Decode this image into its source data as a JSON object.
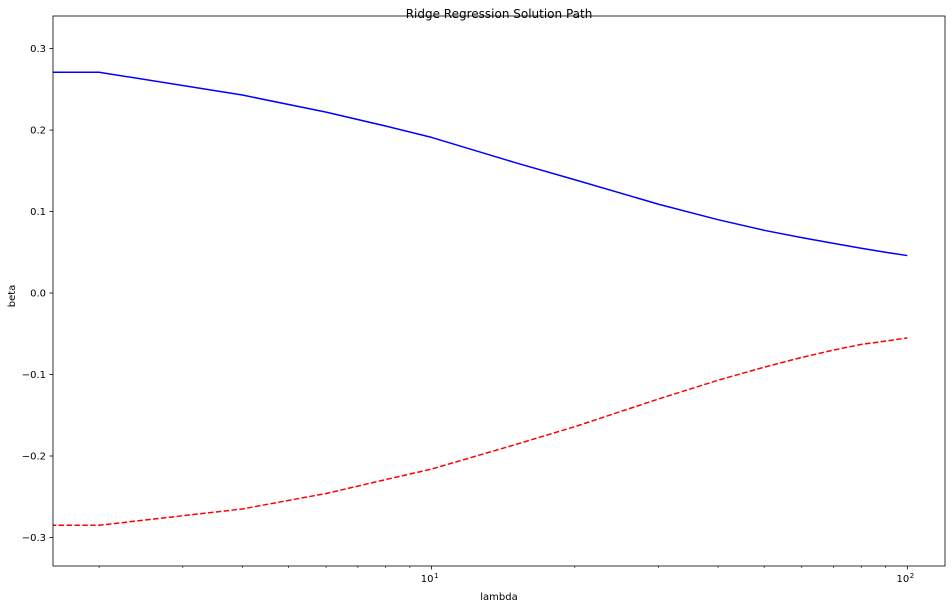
{
  "chart_data": {
    "type": "line",
    "title": "Ridge Regression Solution Path",
    "xlabel": "lambda",
    "ylabel": "beta",
    "xscale": "log",
    "xlim": [
      1.6,
      120
    ],
    "ylim": [
      -0.335,
      0.34
    ],
    "grid": false,
    "x_major_ticks": [
      {
        "value": 10,
        "base": "10",
        "exp": "1"
      },
      {
        "value": 100,
        "base": "10",
        "exp": "2"
      }
    ],
    "x_minor_ticks": [
      2,
      3,
      4,
      5,
      6,
      7,
      8,
      9,
      20,
      30,
      40,
      50,
      60,
      70,
      80,
      90
    ],
    "y_ticks": [
      {
        "value": 0.3,
        "label": "0.3"
      },
      {
        "value": 0.2,
        "label": "0.2"
      },
      {
        "value": 0.1,
        "label": "0.1"
      },
      {
        "value": 0.0,
        "label": "0.0"
      },
      {
        "value": -0.1,
        "label": "−0.1"
      },
      {
        "value": -0.2,
        "label": "−0.2"
      },
      {
        "value": -0.3,
        "label": "−0.3"
      }
    ],
    "series": [
      {
        "color": "#0000ff",
        "linestyle": "solid",
        "x": [
          1,
          2,
          4,
          6,
          8,
          10,
          15,
          20,
          30,
          40,
          50,
          60,
          70,
          80,
          90,
          100
        ],
        "y": [
          0.271,
          0.271,
          0.243,
          0.222,
          0.205,
          0.191,
          0.16,
          0.139,
          0.109,
          0.09,
          0.077,
          0.068,
          0.061,
          0.055,
          0.05,
          0.046
        ]
      },
      {
        "color": "#ff0000",
        "linestyle": "dashed",
        "x": [
          1,
          2,
          4,
          6,
          8,
          10,
          15,
          20,
          30,
          40,
          50,
          60,
          70,
          80,
          90,
          100
        ],
        "y": [
          -0.285,
          -0.285,
          -0.265,
          -0.246,
          -0.229,
          -0.216,
          -0.186,
          -0.164,
          -0.13,
          -0.107,
          -0.091,
          -0.079,
          -0.07,
          -0.063,
          -0.059,
          -0.055
        ]
      }
    ]
  }
}
